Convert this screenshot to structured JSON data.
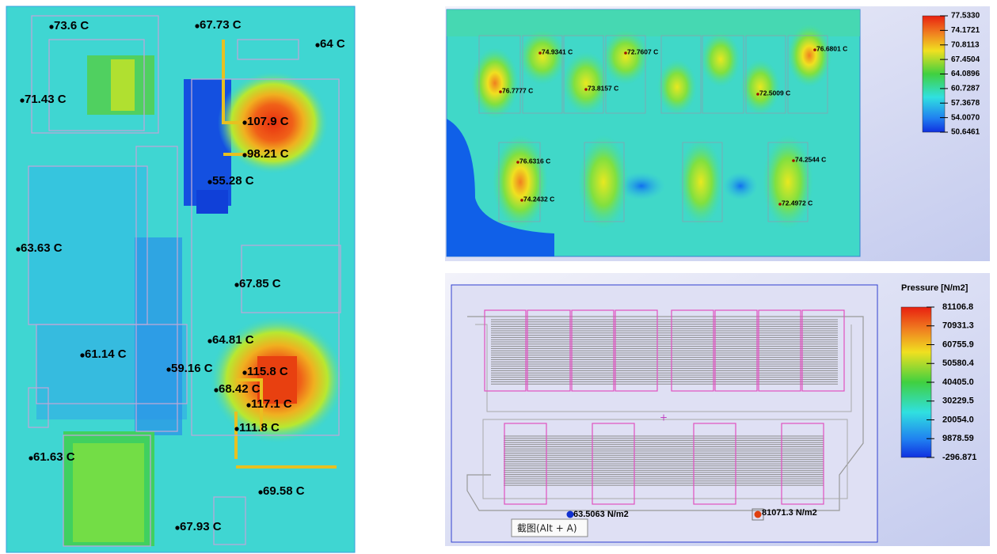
{
  "left_panel": {
    "labels": [
      "73.6 C",
      "67.73 C",
      "64 C",
      "71.43 C",
      "107.9 C",
      "98.21 C",
      "55.28 C",
      "63.63 C",
      "67.85 C",
      "64.81 C",
      "61.14 C",
      "59.16 C",
      "115.8 C",
      "68.42 C",
      "117.1 C",
      "111.8 C",
      "61.63 C",
      "69.58 C",
      "67.93 C"
    ]
  },
  "top_right_panel": {
    "labels": [
      "74.9341 C",
      "72.7607 C",
      "76.6801 C",
      "76.7777 C",
      "73.8157 C",
      "72.5009 C",
      "76.6316 C",
      "74.2544 C",
      "74.2432 C",
      "72.4972 C"
    ],
    "legend": {
      "ticks": [
        "77.5330",
        "74.1721",
        "70.8113",
        "67.4504",
        "64.0896",
        "60.7287",
        "57.3678",
        "54.0070",
        "50.6461"
      ]
    }
  },
  "bottom_right_panel": {
    "legend": {
      "title": "Pressure [N/m2]",
      "ticks": [
        "81106.8",
        "70931.3",
        "60755.9",
        "50580.4",
        "40405.0",
        "30229.5",
        "20054.0",
        "9878.59",
        "-296.871"
      ]
    },
    "labels": [
      "63.5063 N/m2",
      "81071.3 N/m2"
    ],
    "tooltip": "截图(Alt + A)"
  }
}
